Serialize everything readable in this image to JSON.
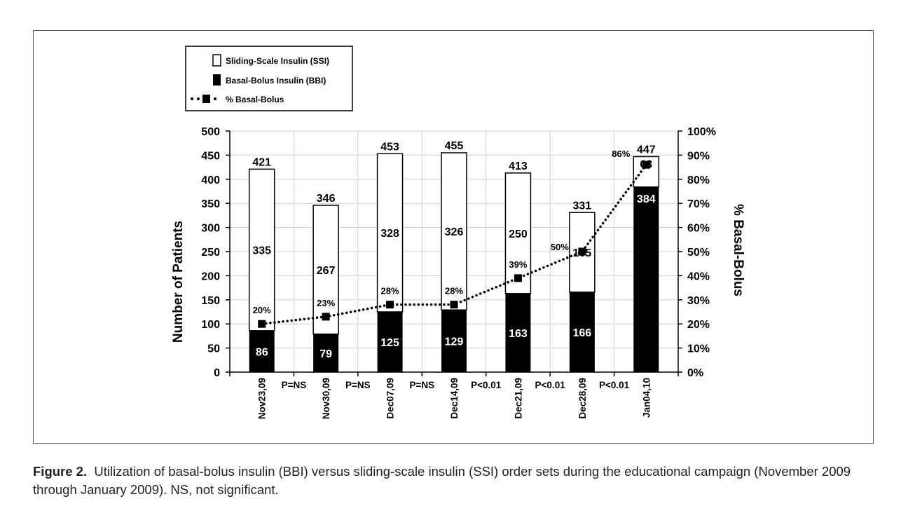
{
  "chart_data": {
    "type": "bar",
    "stacked": true,
    "categories": [
      "Nov23,09",
      "Nov30,09",
      "Dec07,09",
      "Dec14,09",
      "Dec21,09",
      "Dec28,09",
      "Jan04,10"
    ],
    "series": [
      {
        "name": "Basal-Bolus Insulin (BBI)",
        "values": [
          86,
          79,
          125,
          129,
          163,
          166,
          384
        ],
        "color": "#000000"
      },
      {
        "name": "Sliding-Scale Insulin (SSI)",
        "values": [
          335,
          267,
          328,
          326,
          250,
          165,
          63
        ],
        "color": "#ffffff"
      }
    ],
    "totals": [
      421,
      346,
      453,
      455,
      413,
      331,
      447
    ],
    "line_series": {
      "name": "% Basal-Bolus",
      "values": [
        20,
        23,
        28,
        28,
        39,
        50,
        86
      ],
      "labels": [
        "20%",
        "23%",
        "28%",
        "28%",
        "39%",
        "50%",
        "86%"
      ],
      "style": "dotted"
    },
    "pvalues": [
      "P=NS",
      "P=NS",
      "P=NS",
      "P<0.01",
      "P<0.01",
      "P<0.01"
    ],
    "ylabel": "Number of Patients",
    "y2label": "% Basal-Bolus",
    "ylim": [
      0,
      500
    ],
    "y2lim": [
      0,
      100
    ],
    "yticks": [
      "0",
      "50",
      "100",
      "150",
      "200",
      "250",
      "300",
      "350",
      "400",
      "450",
      "500"
    ],
    "y2ticks": [
      "0%",
      "10%",
      "20%",
      "30%",
      "40%",
      "50%",
      "60%",
      "70%",
      "80%",
      "90%",
      "100%"
    ],
    "grid": true,
    "legend_position": "top-left"
  },
  "legend": {
    "ssi": "Sliding-Scale Insulin (SSI)",
    "bbi": "Basal-Bolus Insulin (BBI)",
    "pct": "% Basal-Bolus"
  },
  "caption": {
    "label": "Figure 2.",
    "text": "Utilization of basal-bolus insulin (BBI) versus sliding-scale insulin (SSI) order sets during the educational campaign (November 2009 through January 2009). NS, not significant."
  }
}
